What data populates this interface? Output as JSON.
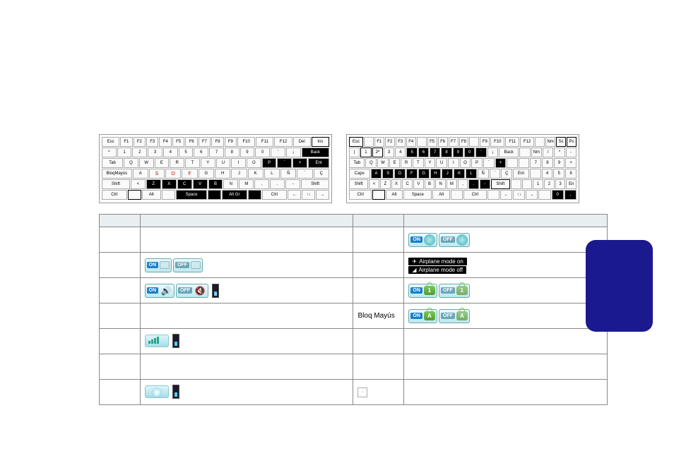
{
  "keyboards": {
    "left": {
      "rows": [
        {
          "keys": [
            "Esc",
            "F1",
            "F2",
            "F3",
            "F4",
            "F5",
            "F6",
            "F7",
            "F8",
            "F9",
            "F10",
            "F11",
            "F12",
            "Del",
            "Ins"
          ],
          "blackSpan": null,
          "outlined": [
            14,
            15
          ]
        },
        {
          "keys": [
            "º",
            "1",
            "2",
            "3",
            "4",
            "5",
            "6",
            "7",
            "8",
            "9",
            "0",
            "'",
            "¡",
            "Back"
          ],
          "blackSpan": [
            13,
            14
          ]
        },
        {
          "keys": [
            "Tab",
            "Q",
            "W",
            "E",
            "R",
            "T",
            "Y",
            "U",
            "I",
            "O",
            "P",
            "`",
            "+",
            "Ent"
          ],
          "blackSpan": [
            10,
            14
          ]
        },
        {
          "keys": [
            "BloqMayús",
            "A",
            "S",
            "D",
            "F",
            "G",
            "H",
            "J",
            "K",
            "L",
            "Ñ",
            "´",
            "Ç"
          ],
          "blackSpan": null,
          "redGlyphs": [
            2,
            3,
            4
          ]
        },
        {
          "keys": [
            "Shift",
            "<",
            "Z",
            "X",
            "C",
            "V",
            "B",
            "N",
            "M",
            ",",
            ".",
            "-",
            "Shift"
          ],
          "blackSpan": [
            2,
            7
          ]
        },
        {
          "keys": [
            "Ctrl",
            "",
            "Alt",
            "",
            "Space",
            "",
            "Alt Gr",
            "",
            "Ctrl",
            "←",
            "↑↓",
            "→"
          ],
          "blackSpan": [
            4,
            8
          ],
          "outlined": [
            1
          ]
        }
      ]
    },
    "right": {
      "rows": [
        {
          "keys": [
            "Esc",
            "",
            "F1",
            "F2",
            "F3",
            "F4",
            "",
            "F5",
            "F6",
            "F7",
            "F8",
            "",
            "F9",
            "F10",
            "F11",
            "F12",
            "",
            "Nm",
            "Sc",
            "Ps"
          ],
          "outlined": [
            0,
            18,
            19,
            20
          ]
        },
        {
          "keys": [
            "|",
            "1",
            "2ª",
            "3",
            "4",
            "5",
            "6",
            "7",
            "8",
            "9",
            "0",
            "'",
            "¡",
            "Back",
            "",
            "Nm",
            "/",
            "*",
            "-"
          ],
          "blackSpan": [
            5,
            12
          ],
          "outlined": [
            1,
            2
          ]
        },
        {
          "keys": [
            "Tab",
            "Q",
            "W",
            "E",
            "R",
            "T",
            "Y",
            "U",
            "I",
            "O",
            "P",
            "`",
            "+",
            "",
            "",
            "7",
            "8",
            "9",
            "+"
          ],
          "blackSpan": [
            12,
            13
          ]
        },
        {
          "keys": [
            "Caps",
            "A",
            "S",
            "D",
            "F",
            "G",
            "H",
            "J",
            "K",
            "L",
            "Ñ",
            "´",
            "Ç",
            "Ent",
            "",
            "4",
            "5",
            "6"
          ],
          "blackSpan": [
            1,
            10
          ]
        },
        {
          "keys": [
            "Shift",
            "<",
            "Z",
            "X",
            "C",
            "V",
            "B",
            "N",
            "M",
            ",",
            ".",
            "-",
            "Shift",
            "",
            "",
            "1",
            "2",
            "3",
            "En"
          ],
          "blackSpan": [
            10,
            12
          ],
          "outlined": [
            12
          ]
        },
        {
          "keys": [
            "Ctrl",
            "",
            "Alt",
            "Space",
            "Alt",
            "",
            "Ctrl",
            "",
            "←",
            "↑↓",
            "→",
            "",
            "0",
            ","
          ],
          "blackSpan": [
            12,
            14
          ],
          "outlined": [
            1
          ]
        }
      ]
    }
  },
  "table": {
    "headers": [
      "",
      "",
      "",
      ""
    ],
    "rows": [
      {
        "c1": "",
        "c2_text": "",
        "c2_icons": [],
        "c3": "",
        "c4_icons": [
          {
            "type": "onoff-globe"
          }
        ]
      },
      {
        "c1": "",
        "c2_text": "",
        "c2_icons": [
          {
            "type": "onoff-screen"
          }
        ],
        "c3": "",
        "c4_icons": [
          {
            "type": "airplane"
          }
        ]
      },
      {
        "c1": "",
        "c2_text": "",
        "c2_icons": [
          {
            "type": "onoff-speaker"
          },
          {
            "type": "vbar-x"
          }
        ],
        "c3": "",
        "c4_icons": [
          {
            "type": "onoff-lock",
            "label": "1"
          }
        ]
      },
      {
        "c1": "",
        "c2_text": "",
        "c2_icons": [],
        "c3": "Bloq Mayús",
        "c4_icons": [
          {
            "type": "onoff-lock",
            "label": "A"
          }
        ]
      },
      {
        "c1": "",
        "c2_text": "",
        "c2_icons": [
          {
            "type": "slider-vol"
          },
          {
            "type": "vbar"
          }
        ],
        "c3": "",
        "c4_icons": []
      },
      {
        "c1": "",
        "c2_text": "",
        "c2_icons": [],
        "c3": "",
        "c4_icons": []
      },
      {
        "c1": "",
        "c2_text": "",
        "c2_icons": [
          {
            "type": "slider-sun"
          },
          {
            "type": "vbar"
          }
        ],
        "c3_key": "·",
        "c4_icons": []
      }
    ]
  },
  "labels": {
    "on": "ON",
    "off": "OFF",
    "airplane_on": "Airplane mode on",
    "airplane_off": "Airplane mode off"
  },
  "colors": {
    "accent": "#1a7fc8",
    "offTag": "#6aa6b8",
    "sideTab": "#1a1a8e",
    "lockGreen": "#6fbf4f"
  }
}
